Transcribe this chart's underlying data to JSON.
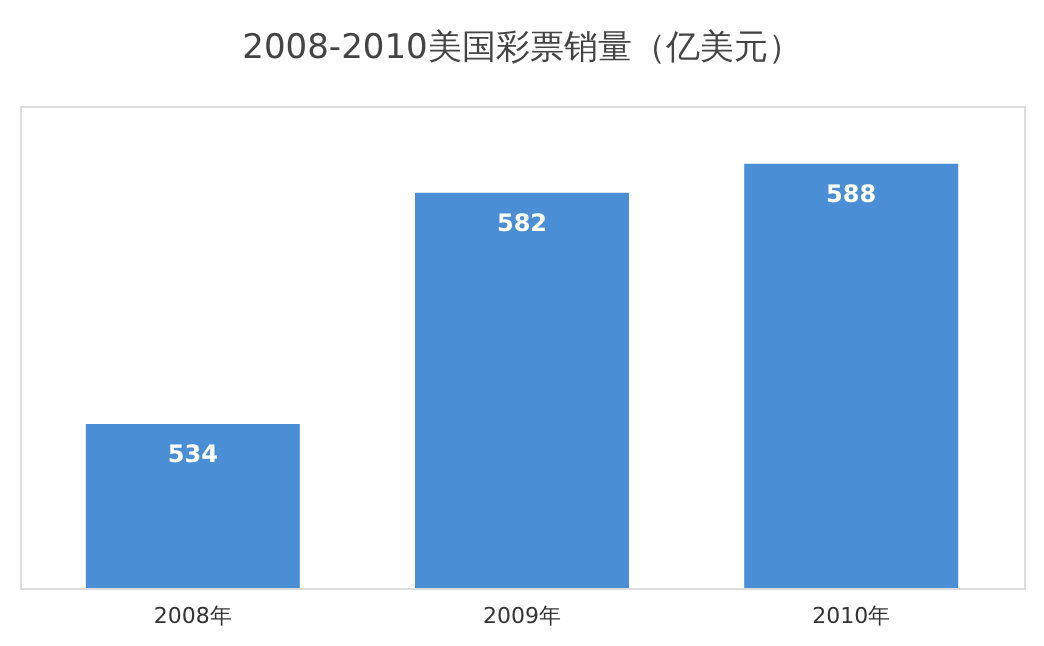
{
  "chart_data": {
    "type": "bar",
    "title": "2008-2010美国彩票销量（亿美元）",
    "categories": [
      "2008年",
      "2009年",
      "2010年"
    ],
    "values": [
      534,
      582,
      588
    ],
    "color": "#4a8ed6",
    "ylim": [
      500,
      600
    ],
    "data_labels": true,
    "grid": false,
    "tick_labels": "x"
  }
}
